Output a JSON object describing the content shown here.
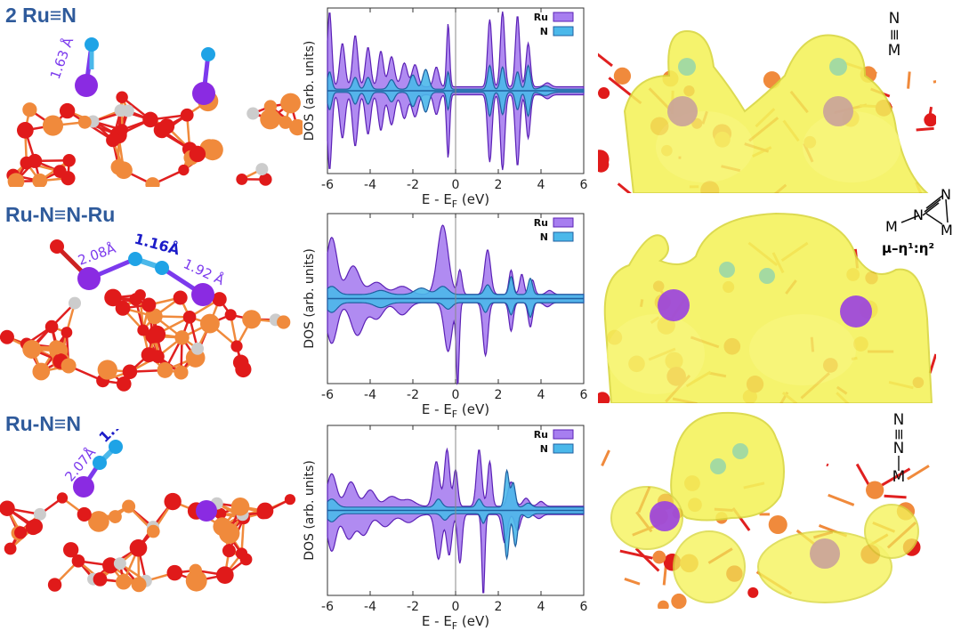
{
  "colors": {
    "title_blue": "#2e5a9b",
    "ru_fill": "#a77ef0",
    "ru_stroke": "#5b21b6",
    "n_fill": "#4bb8ea",
    "n_stroke": "#1f5fa0",
    "bond_label_purple": "#7c3aed",
    "bond_label_blue": "#1b1bc8",
    "isosurface_yellow": "#f4f25a",
    "oxygen_red": "#e01a1a",
    "titanium_orange": "#f08a3c"
  },
  "panels": [
    {
      "title": "2 Ru≡N",
      "bond_labels": [
        "1.63 Å"
      ],
      "notation": [
        "N",
        "≡",
        "M"
      ],
      "chart_data": {
        "type": "area",
        "xlabel": "E - E",
        "xlabel_sub": "F",
        "xlabel_unit": " (eV)",
        "ylabel": "DOS (arb. units)",
        "xlim": [
          -6,
          6
        ],
        "xticks": [
          "-6",
          "-4",
          "-2",
          "0",
          "2",
          "4",
          "6"
        ],
        "legend": [
          "Ru",
          "N"
        ],
        "series": [
          {
            "name": "Ru",
            "peaks": [
              [
                -5.9,
                0.95,
                0.1
              ],
              [
                -5.3,
                0.55,
                0.12
              ],
              [
                -4.7,
                0.65,
                0.12
              ],
              [
                -4.1,
                0.5,
                0.12
              ],
              [
                -3.5,
                0.45,
                0.12
              ],
              [
                -3.0,
                0.38,
                0.14
              ],
              [
                -2.4,
                0.3,
                0.14
              ],
              [
                -1.9,
                0.28,
                0.14
              ],
              [
                -0.35,
                0.8,
                0.07
              ],
              [
                -0.9,
                0.25,
                0.12
              ],
              [
                1.6,
                0.85,
                0.1
              ],
              [
                2.2,
                0.95,
                0.1
              ],
              [
                2.9,
                0.9,
                0.1
              ],
              [
                3.4,
                0.55,
                0.1
              ],
              [
                4.3,
                0.05,
                0.15
              ]
            ],
            "base": 0.05
          },
          {
            "name": "N",
            "peaks": [
              [
                -5.9,
                0.22,
                0.1
              ],
              [
                -4.7,
                0.15,
                0.12
              ],
              [
                -4.1,
                0.15,
                0.12
              ],
              [
                -3.0,
                0.12,
                0.14
              ],
              [
                -2.0,
                0.18,
                0.14
              ],
              [
                -1.4,
                0.25,
                0.14
              ],
              [
                -0.35,
                0.22,
                0.07
              ],
              [
                1.6,
                0.3,
                0.1
              ],
              [
                2.2,
                0.28,
                0.1
              ],
              [
                2.9,
                0.22,
                0.1
              ],
              [
                3.4,
                0.3,
                0.1
              ],
              [
                4.2,
                0.04,
                0.2
              ]
            ],
            "base": 0.02
          }
        ]
      }
    },
    {
      "title": "Ru-N≡N-Ru",
      "bond_labels": [
        "2.08Å",
        "1.16Å",
        "1.92 Å"
      ],
      "notation": [
        "M",
        "N",
        "N",
        "M",
        "μ–η¹:η²"
      ],
      "chart_data": {
        "type": "area",
        "xlabel": "E - E",
        "xlabel_sub": "F",
        "xlabel_unit": " (eV)",
        "ylabel": "DOS (arb. units)",
        "xlim": [
          -6,
          6
        ],
        "xticks": [
          "-6",
          "-4",
          "-2",
          "0",
          "2",
          "4",
          "6"
        ],
        "legend": [
          "Ru",
          "N"
        ],
        "series": [
          {
            "name": "Ru",
            "up_peaks": [
              [
                -5.8,
                0.7,
                0.25
              ],
              [
                -4.8,
                0.35,
                0.3
              ],
              [
                -3.7,
                0.15,
                0.35
              ],
              [
                -2.5,
                0.1,
                0.35
              ],
              [
                -0.6,
                0.85,
                0.25
              ],
              [
                0.2,
                0.3,
                0.1
              ],
              [
                1.5,
                0.55,
                0.14
              ],
              [
                2.6,
                0.3,
                0.1
              ],
              [
                3.1,
                0.25,
                0.1
              ],
              [
                3.6,
                0.18,
                0.1
              ],
              [
                4.4,
                0.05,
                0.15
              ]
            ],
            "down_peaks": [
              [
                -5.8,
                0.5,
                0.25
              ],
              [
                -4.6,
                0.4,
                0.3
              ],
              [
                -3.7,
                0.2,
                0.3
              ],
              [
                -2.5,
                0.15,
                0.3
              ],
              [
                -0.35,
                0.6,
                0.18
              ],
              [
                0.1,
                1.0,
                0.07
              ],
              [
                1.4,
                0.65,
                0.12
              ],
              [
                2.6,
                0.35,
                0.1
              ],
              [
                3.5,
                0.3,
                0.1
              ],
              [
                4.3,
                0.05,
                0.15
              ]
            ],
            "base": 0.05
          },
          {
            "name": "N",
            "up_peaks": [
              [
                -5.8,
                0.1,
                0.25
              ],
              [
                -3.5,
                0.05,
                0.3
              ],
              [
                -1.6,
                0.08,
                0.3
              ],
              [
                -0.6,
                0.1,
                0.25
              ],
              [
                1.5,
                0.12,
                0.14
              ],
              [
                2.6,
                0.22,
                0.1
              ],
              [
                3.5,
                0.2,
                0.1
              ]
            ],
            "down_peaks": [
              [
                -5.8,
                0.12,
                0.25
              ],
              [
                -3.5,
                0.06,
                0.3
              ],
              [
                -0.35,
                0.08,
                0.18
              ],
              [
                1.4,
                0.12,
                0.12
              ],
              [
                2.6,
                0.15,
                0.1
              ],
              [
                3.5,
                0.18,
                0.1
              ]
            ],
            "base": 0.05
          }
        ]
      }
    },
    {
      "title": "Ru-N≡N",
      "bond_labels": [
        "2.07Å",
        "1.12Å"
      ],
      "notation": [
        "N",
        "≡",
        "N",
        "|",
        "M"
      ],
      "chart_data": {
        "type": "area",
        "xlabel": "E - E",
        "xlabel_sub": "F",
        "xlabel_unit": " (eV)",
        "ylabel": "DOS (arb. units)",
        "xlim": [
          -6,
          6
        ],
        "xticks": [
          "-6",
          "-4",
          "-2",
          "0",
          "2",
          "4",
          "6"
        ],
        "legend": [
          "Ru",
          "N"
        ],
        "series": [
          {
            "name": "Ru",
            "up_peaks": [
              [
                -5.8,
                0.4,
                0.22
              ],
              [
                -4.9,
                0.3,
                0.25
              ],
              [
                -4.0,
                0.2,
                0.25
              ],
              [
                -3.0,
                0.12,
                0.3
              ],
              [
                -2.2,
                0.08,
                0.3
              ],
              [
                -0.9,
                0.55,
                0.15
              ],
              [
                -0.4,
                0.7,
                0.12
              ],
              [
                0.0,
                0.45,
                0.1
              ],
              [
                1.1,
                0.7,
                0.12
              ],
              [
                1.6,
                0.55,
                0.1
              ],
              [
                2.6,
                0.3,
                0.15
              ],
              [
                3.3,
                0.1,
                0.15
              ],
              [
                4.0,
                0.06,
                0.15
              ]
            ],
            "down_peaks": [
              [
                -5.8,
                0.45,
                0.2
              ],
              [
                -5.0,
                0.3,
                0.25
              ],
              [
                -4.3,
                0.25,
                0.25
              ],
              [
                -3.3,
                0.15,
                0.3
              ],
              [
                -2.2,
                0.1,
                0.3
              ],
              [
                -0.8,
                0.55,
                0.15
              ],
              [
                -0.3,
                0.5,
                0.12
              ],
              [
                0.2,
                0.6,
                0.1
              ],
              [
                1.3,
                1.0,
                0.07
              ],
              [
                2.3,
                0.35,
                0.12
              ],
              [
                2.9,
                0.2,
                0.12
              ],
              [
                3.9,
                0.05,
                0.15
              ]
            ],
            "base": 0.05
          },
          {
            "name": "N",
            "up_peaks": [
              [
                -5.8,
                0.1,
                0.22
              ],
              [
                -0.8,
                0.1,
                0.15
              ],
              [
                1.1,
                0.1,
                0.12
              ],
              [
                2.4,
                0.45,
                0.1
              ],
              [
                2.7,
                0.3,
                0.1
              ],
              [
                3.4,
                0.05,
                0.15
              ]
            ],
            "down_peaks": [
              [
                -5.8,
                0.1,
                0.22
              ],
              [
                -0.5,
                0.08,
                0.15
              ],
              [
                1.3,
                0.12,
                0.1
              ],
              [
                2.4,
                0.55,
                0.1
              ],
              [
                2.8,
                0.4,
                0.1
              ],
              [
                3.4,
                0.05,
                0.15
              ]
            ],
            "base": 0.04
          }
        ]
      }
    }
  ]
}
